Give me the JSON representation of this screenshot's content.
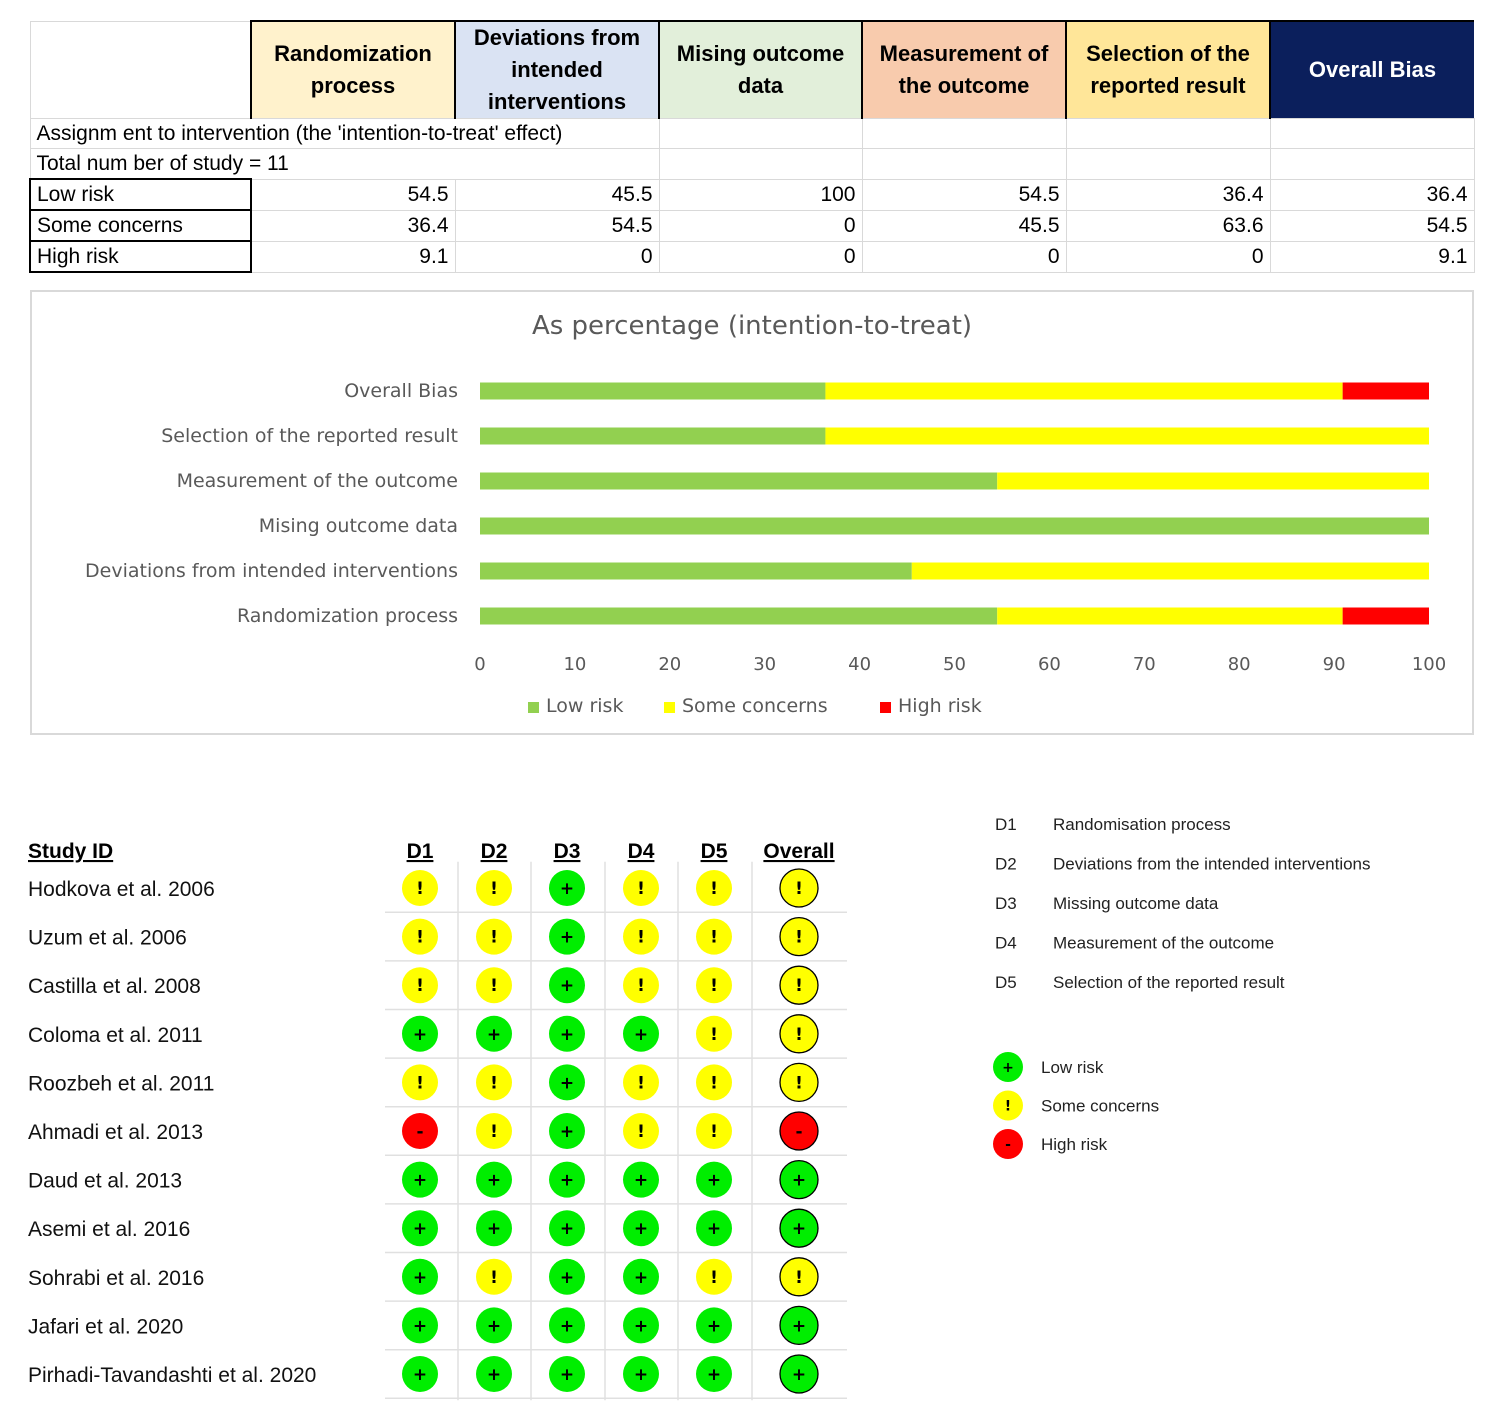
{
  "summary_table": {
    "headers": [
      {
        "label": "Randomization process",
        "bg": "#fff2cc",
        "color": "#000000"
      },
      {
        "label": "Deviations from intended interventions",
        "bg": "#dae3f3",
        "color": "#000000"
      },
      {
        "label": "Mising outcome data",
        "bg": "#e2efda",
        "color": "#000000"
      },
      {
        "label": "Measurement of the outcome",
        "bg": "#f8cbad",
        "color": "#000000"
      },
      {
        "label": "Selection of the reported result",
        "bg": "#ffe699",
        "color": "#000000"
      },
      {
        "label": "Overall Bias",
        "bg": "#0b1f5c",
        "color": "#ffffff"
      }
    ],
    "assignment_text": "Assignm ent to intervention (the 'intention-to-treat' effect)",
    "total_text": "Total num ber of study = 11",
    "rows": [
      {
        "label": "Low risk",
        "values": [
          "54.5",
          "45.5",
          "100",
          "54.5",
          "36.4",
          "36.4"
        ]
      },
      {
        "label": "Some concerns",
        "values": [
          "36.4",
          "54.5",
          "0",
          "45.5",
          "63.6",
          "54.5"
        ]
      },
      {
        "label": "High risk",
        "values": [
          "9.1",
          "0",
          "0",
          "0",
          "0",
          "9.1"
        ]
      }
    ]
  },
  "chart_data": [
    {
      "type": "bar",
      "orientation": "horizontal-stacked",
      "title": "As percentage (intention-to-treat)",
      "categories": [
        "Overall Bias",
        "Selection of the reported result",
        "Measurement of the outcome",
        "Mising outcome data",
        "Deviations from intended interventions",
        "Randomization process"
      ],
      "series": [
        {
          "name": "Low risk",
          "color": "#92d050",
          "values": [
            36.4,
            36.4,
            54.5,
            100,
            45.5,
            54.5
          ]
        },
        {
          "name": "Some concerns",
          "color": "#ffff00",
          "values": [
            54.5,
            63.6,
            45.5,
            0,
            54.5,
            36.4
          ]
        },
        {
          "name": "High risk",
          "color": "#ff0000",
          "values": [
            9.1,
            0,
            0,
            0,
            0,
            9.1
          ]
        }
      ],
      "xlim": [
        0,
        100
      ],
      "xticks": [
        0,
        10,
        20,
        30,
        40,
        50,
        60,
        70,
        80,
        90,
        100
      ],
      "legend": "bottom",
      "grid": false
    },
    {
      "type": "table",
      "name": "traffic-light-plot",
      "header_study": "Study ID",
      "columns": [
        "D1",
        "D2",
        "D3",
        "D4",
        "D5",
        "Overall"
      ],
      "studies": [
        {
          "id": "Hodkova et al. 2006",
          "judgements": [
            "some",
            "some",
            "low",
            "some",
            "some",
            "some"
          ]
        },
        {
          "id": "Uzum et al. 2006",
          "judgements": [
            "some",
            "some",
            "low",
            "some",
            "some",
            "some"
          ]
        },
        {
          "id": "Castilla et al. 2008",
          "judgements": [
            "some",
            "some",
            "low",
            "some",
            "some",
            "some"
          ]
        },
        {
          "id": "Coloma et al. 2011",
          "judgements": [
            "low",
            "low",
            "low",
            "low",
            "some",
            "some"
          ]
        },
        {
          "id": "Roozbeh et al. 2011",
          "judgements": [
            "some",
            "some",
            "low",
            "some",
            "some",
            "some"
          ]
        },
        {
          "id": "Ahmadi et al. 2013",
          "judgements": [
            "high",
            "some",
            "low",
            "some",
            "some",
            "high"
          ]
        },
        {
          "id": "Daud et al. 2013",
          "judgements": [
            "low",
            "low",
            "low",
            "low",
            "low",
            "low"
          ]
        },
        {
          "id": "Asemi et al. 2016",
          "judgements": [
            "low",
            "low",
            "low",
            "low",
            "low",
            "low"
          ]
        },
        {
          "id": "Sohrabi et al. 2016",
          "judgements": [
            "low",
            "some",
            "low",
            "low",
            "some",
            "some"
          ]
        },
        {
          "id": "Jafari et al. 2020",
          "judgements": [
            "low",
            "low",
            "low",
            "low",
            "low",
            "low"
          ]
        },
        {
          "id": "Pirhadi-Tavandashti et al. 2020",
          "judgements": [
            "low",
            "low",
            "low",
            "low",
            "low",
            "low"
          ]
        }
      ],
      "symbols": {
        "low": {
          "glyph": "+",
          "color": "#00ee00"
        },
        "some": {
          "glyph": "!",
          "color": "#ffff00"
        },
        "high": {
          "glyph": "-",
          "color": "#ff0000"
        }
      },
      "domain_legend": [
        {
          "code": "D1",
          "text": "Randomisation process"
        },
        {
          "code": "D2",
          "text": "Deviations from the intended interventions"
        },
        {
          "code": "D3",
          "text": "Missing outcome data"
        },
        {
          "code": "D4",
          "text": "Measurement of the outcome"
        },
        {
          "code": "D5",
          "text": "Selection of the reported result"
        }
      ],
      "judgement_legend": [
        {
          "key": "low",
          "text": "Low risk"
        },
        {
          "key": "some",
          "text": "Some concerns"
        },
        {
          "key": "high",
          "text": "High risk"
        }
      ]
    }
  ]
}
